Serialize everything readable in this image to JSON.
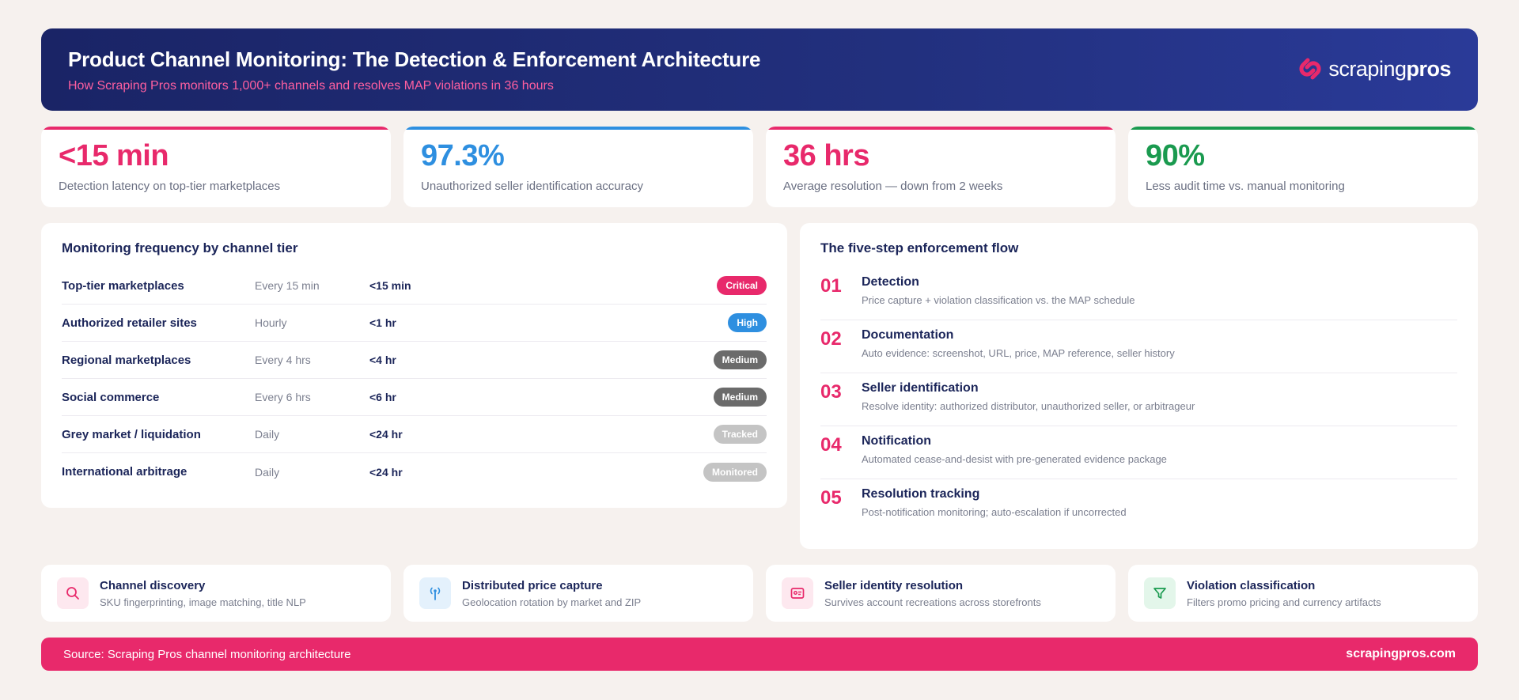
{
  "header": {
    "title": "Product Channel Monitoring: The Detection & Enforcement Architecture",
    "subtitle": "How Scraping Pros monitors 1,000+ channels and resolves MAP violations in 36 hours",
    "logo_text_light": "scraping",
    "logo_text_bold": "pros",
    "logo_icon": "scrapingpros-logo-icon"
  },
  "kpis": [
    {
      "value": "<15 min",
      "label": "Detection latency on top-tier marketplaces",
      "color": "#e8296b"
    },
    {
      "value": "97.3%",
      "label": "Unauthorized seller identification accuracy",
      "color": "#2e8fe0"
    },
    {
      "value": "36 hrs",
      "label": "Average resolution — down from 2 weeks",
      "color": "#e8296b"
    },
    {
      "value": "90%",
      "label": "Less audit time vs. manual monitoring",
      "color": "#1a9a4f"
    }
  ],
  "tiers": {
    "title": "Monitoring frequency by channel tier",
    "rows": [
      {
        "name": "Top-tier marketplaces",
        "frequency": "Every 15 min",
        "latency": "<15 min",
        "badge": "Critical",
        "badge_color": "#e8296b"
      },
      {
        "name": "Authorized retailer sites",
        "frequency": "Hourly",
        "latency": "<1 hr",
        "badge": "High",
        "badge_color": "#2e8fe0"
      },
      {
        "name": "Regional marketplaces",
        "frequency": "Every 4 hrs",
        "latency": "<4 hr",
        "badge": "Medium",
        "badge_color": "#6b6b6b"
      },
      {
        "name": "Social commerce",
        "frequency": "Every 6 hrs",
        "latency": "<6 hr",
        "badge": "Medium",
        "badge_color": "#6b6b6b"
      },
      {
        "name": "Grey market / liquidation",
        "frequency": "Daily",
        "latency": "<24 hr",
        "badge": "Tracked",
        "badge_color": "#c4c4c4"
      },
      {
        "name": "International arbitrage",
        "frequency": "Daily",
        "latency": "<24 hr",
        "badge": "Monitored",
        "badge_color": "#c4c4c4"
      }
    ]
  },
  "flow": {
    "title": "The five-step enforcement flow",
    "steps": [
      {
        "num": "01",
        "title": "Detection",
        "desc": "Price capture + violation classification vs. the MAP schedule"
      },
      {
        "num": "02",
        "title": "Documentation",
        "desc": "Auto evidence: screenshot, URL, price, MAP reference, seller history"
      },
      {
        "num": "03",
        "title": "Seller identification",
        "desc": "Resolve identity: authorized distributor, unauthorized seller, or arbitrageur"
      },
      {
        "num": "04",
        "title": "Notification",
        "desc": "Automated cease-and-desist with pre-generated evidence package"
      },
      {
        "num": "05",
        "title": "Resolution tracking",
        "desc": "Post-notification monitoring; auto-escalation if uncorrected"
      }
    ]
  },
  "capabilities": [
    {
      "title": "Channel discovery",
      "desc": "SKU fingerprinting, image matching, title NLP",
      "icon": "search-icon",
      "color": "#e8296b",
      "bg": "#fde8ef"
    },
    {
      "title": "Distributed price capture",
      "desc": "Geolocation rotation by market and ZIP",
      "icon": "antenna-icon",
      "color": "#2e8fe0",
      "bg": "#e4f1fc"
    },
    {
      "title": "Seller identity resolution",
      "desc": "Survives account recreations across storefronts",
      "icon": "id-card-icon",
      "color": "#e8296b",
      "bg": "#fde8ef"
    },
    {
      "title": "Violation classification",
      "desc": "Filters promo pricing and currency artifacts",
      "icon": "filter-icon",
      "color": "#1a9a4f",
      "bg": "#e3f6ea"
    }
  ],
  "footer": {
    "source": "Source: Scraping Pros channel monitoring architecture",
    "site": "scrapingpros.com"
  }
}
